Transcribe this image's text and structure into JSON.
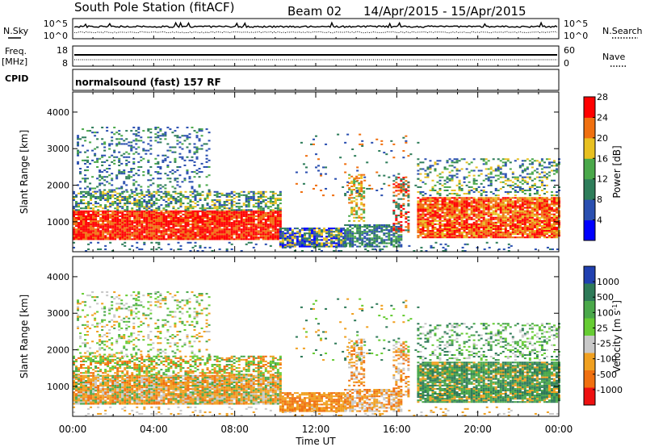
{
  "header": {
    "title": "South Pole Station (fitACF)",
    "beam": "Beam 02",
    "dates": "14/Apr/2015 - 15/Apr/2015"
  },
  "strip_nsky": {
    "label": "N.Sky",
    "ticks": [
      "10^5",
      "10^0"
    ],
    "right_ticks": [
      "10^5",
      "10^0"
    ],
    "right_label": "N.Search"
  },
  "strip_freq": {
    "label_1": "Freq.",
    "label_2": "[MHz]",
    "ticks": [
      "18",
      "8"
    ],
    "right_ticks": [
      "60",
      "0"
    ],
    "right_label": "Nave"
  },
  "cpid": {
    "label": "CPID",
    "value": "normalsound (fast) 157 RF"
  },
  "chart_data": [
    {
      "type": "heatmap",
      "panel": "power",
      "ylabel": "Slant Range [km]",
      "xlabel": "Time UT",
      "x_ticks": [
        "00:00",
        "04:00",
        "08:00",
        "12:00",
        "16:00",
        "20:00",
        "00:00"
      ],
      "y_ticks": [
        1000,
        2000,
        3000,
        4000
      ],
      "ylim": [
        180,
        4550
      ],
      "xlim_hours": [
        0,
        24
      ],
      "colorbar": {
        "label": "Power [dB]",
        "ticks": [
          "4",
          "8",
          "12",
          "16",
          "20",
          "24",
          "28"
        ],
        "colors": [
          "#0000ff",
          "#2a4fb0",
          "#2e7d5a",
          "#4aa84a",
          "#e8c020",
          "#f07010",
          "#ff0000"
        ]
      }
    },
    {
      "type": "heatmap",
      "panel": "velocity",
      "ylabel": "Slant Range [km]",
      "xlabel": "Time UT",
      "x_ticks": [
        "00:00",
        "04:00",
        "08:00",
        "12:00",
        "16:00",
        "20:00",
        "00:00"
      ],
      "y_ticks": [
        1000,
        2000,
        3000,
        4000
      ],
      "ylim": [
        180,
        4550
      ],
      "xlim_hours": [
        0,
        24
      ],
      "colorbar": {
        "label": "Velocity [m s^-1]",
        "ticks": [
          "1000",
          "500",
          "100",
          "25",
          "-25",
          "-100",
          "-500",
          "-1000"
        ],
        "colors": [
          "#2040b0",
          "#2e7a58",
          "#4aa84a",
          "#66cc33",
          "#c8c8c8",
          "#f0a020",
          "#f07010",
          "#ee1010"
        ]
      }
    }
  ],
  "x_axis_title": "Time UT"
}
